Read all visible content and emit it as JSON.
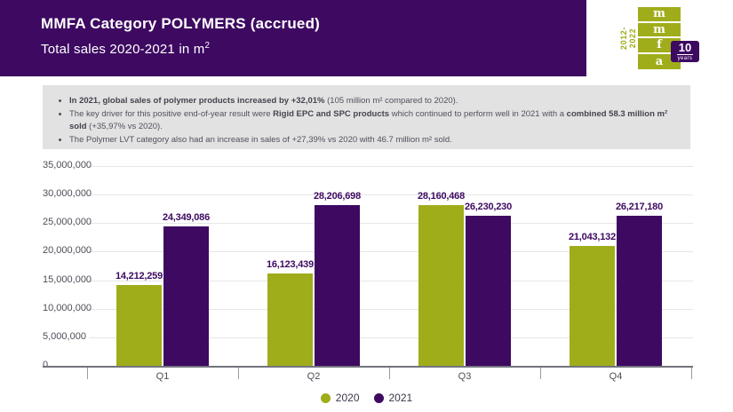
{
  "header": {
    "title": "MMFA Category POLYMERS (accrued)",
    "subtitle": "Total sales 2020-2021 in m²"
  },
  "logo": {
    "vertical_text": "2012-2022",
    "letters": [
      "m",
      "m",
      "f",
      "a"
    ],
    "badge_number": "10",
    "badge_label": "years"
  },
  "summary": {
    "bullets": [
      [
        {
          "t": "In 2021, global sales of polymer products increased by +32,01%",
          "b": true
        },
        {
          "t": " (105 million m² compared to 2020).",
          "b": false
        }
      ],
      [
        {
          "t": "The key driver for this positive end-of-year result were ",
          "b": false
        },
        {
          "t": "Rigid EPC and SPC products",
          "b": true
        },
        {
          "t": " which continued to perform well in 2021 with a ",
          "b": false
        },
        {
          "t": "combined 58.3 million m² sold",
          "b": true
        },
        {
          "t": " (+35,97% vs 2020).",
          "b": false
        }
      ],
      [
        {
          "t": "The Polymer LVT category also had an increase in sales of +27,39% vs 2020 with 46.7 million m² sold.",
          "b": false
        }
      ]
    ]
  },
  "chart_data": {
    "type": "bar",
    "title": "Total sales 2020-2021 in m²",
    "xlabel": "",
    "ylabel": "",
    "categories": [
      "Q1",
      "Q2",
      "Q3",
      "Q4"
    ],
    "series": [
      {
        "name": "2020",
        "color": "#a0ad1a",
        "values": [
          14212259,
          16123439,
          28160468,
          21043132
        ]
      },
      {
        "name": "2021",
        "color": "#3d0961",
        "values": [
          24349086,
          28206698,
          26230230,
          26217180
        ]
      }
    ],
    "ylim": [
      0,
      35000000
    ],
    "ytick_step": 5000000,
    "grid": true,
    "legend_position": "bottom"
  },
  "colors": {
    "accent_purple": "#3d0961",
    "accent_green": "#a0ad1a",
    "summary_background": "#e2e2e2",
    "axis_text": "#4d4d57"
  }
}
